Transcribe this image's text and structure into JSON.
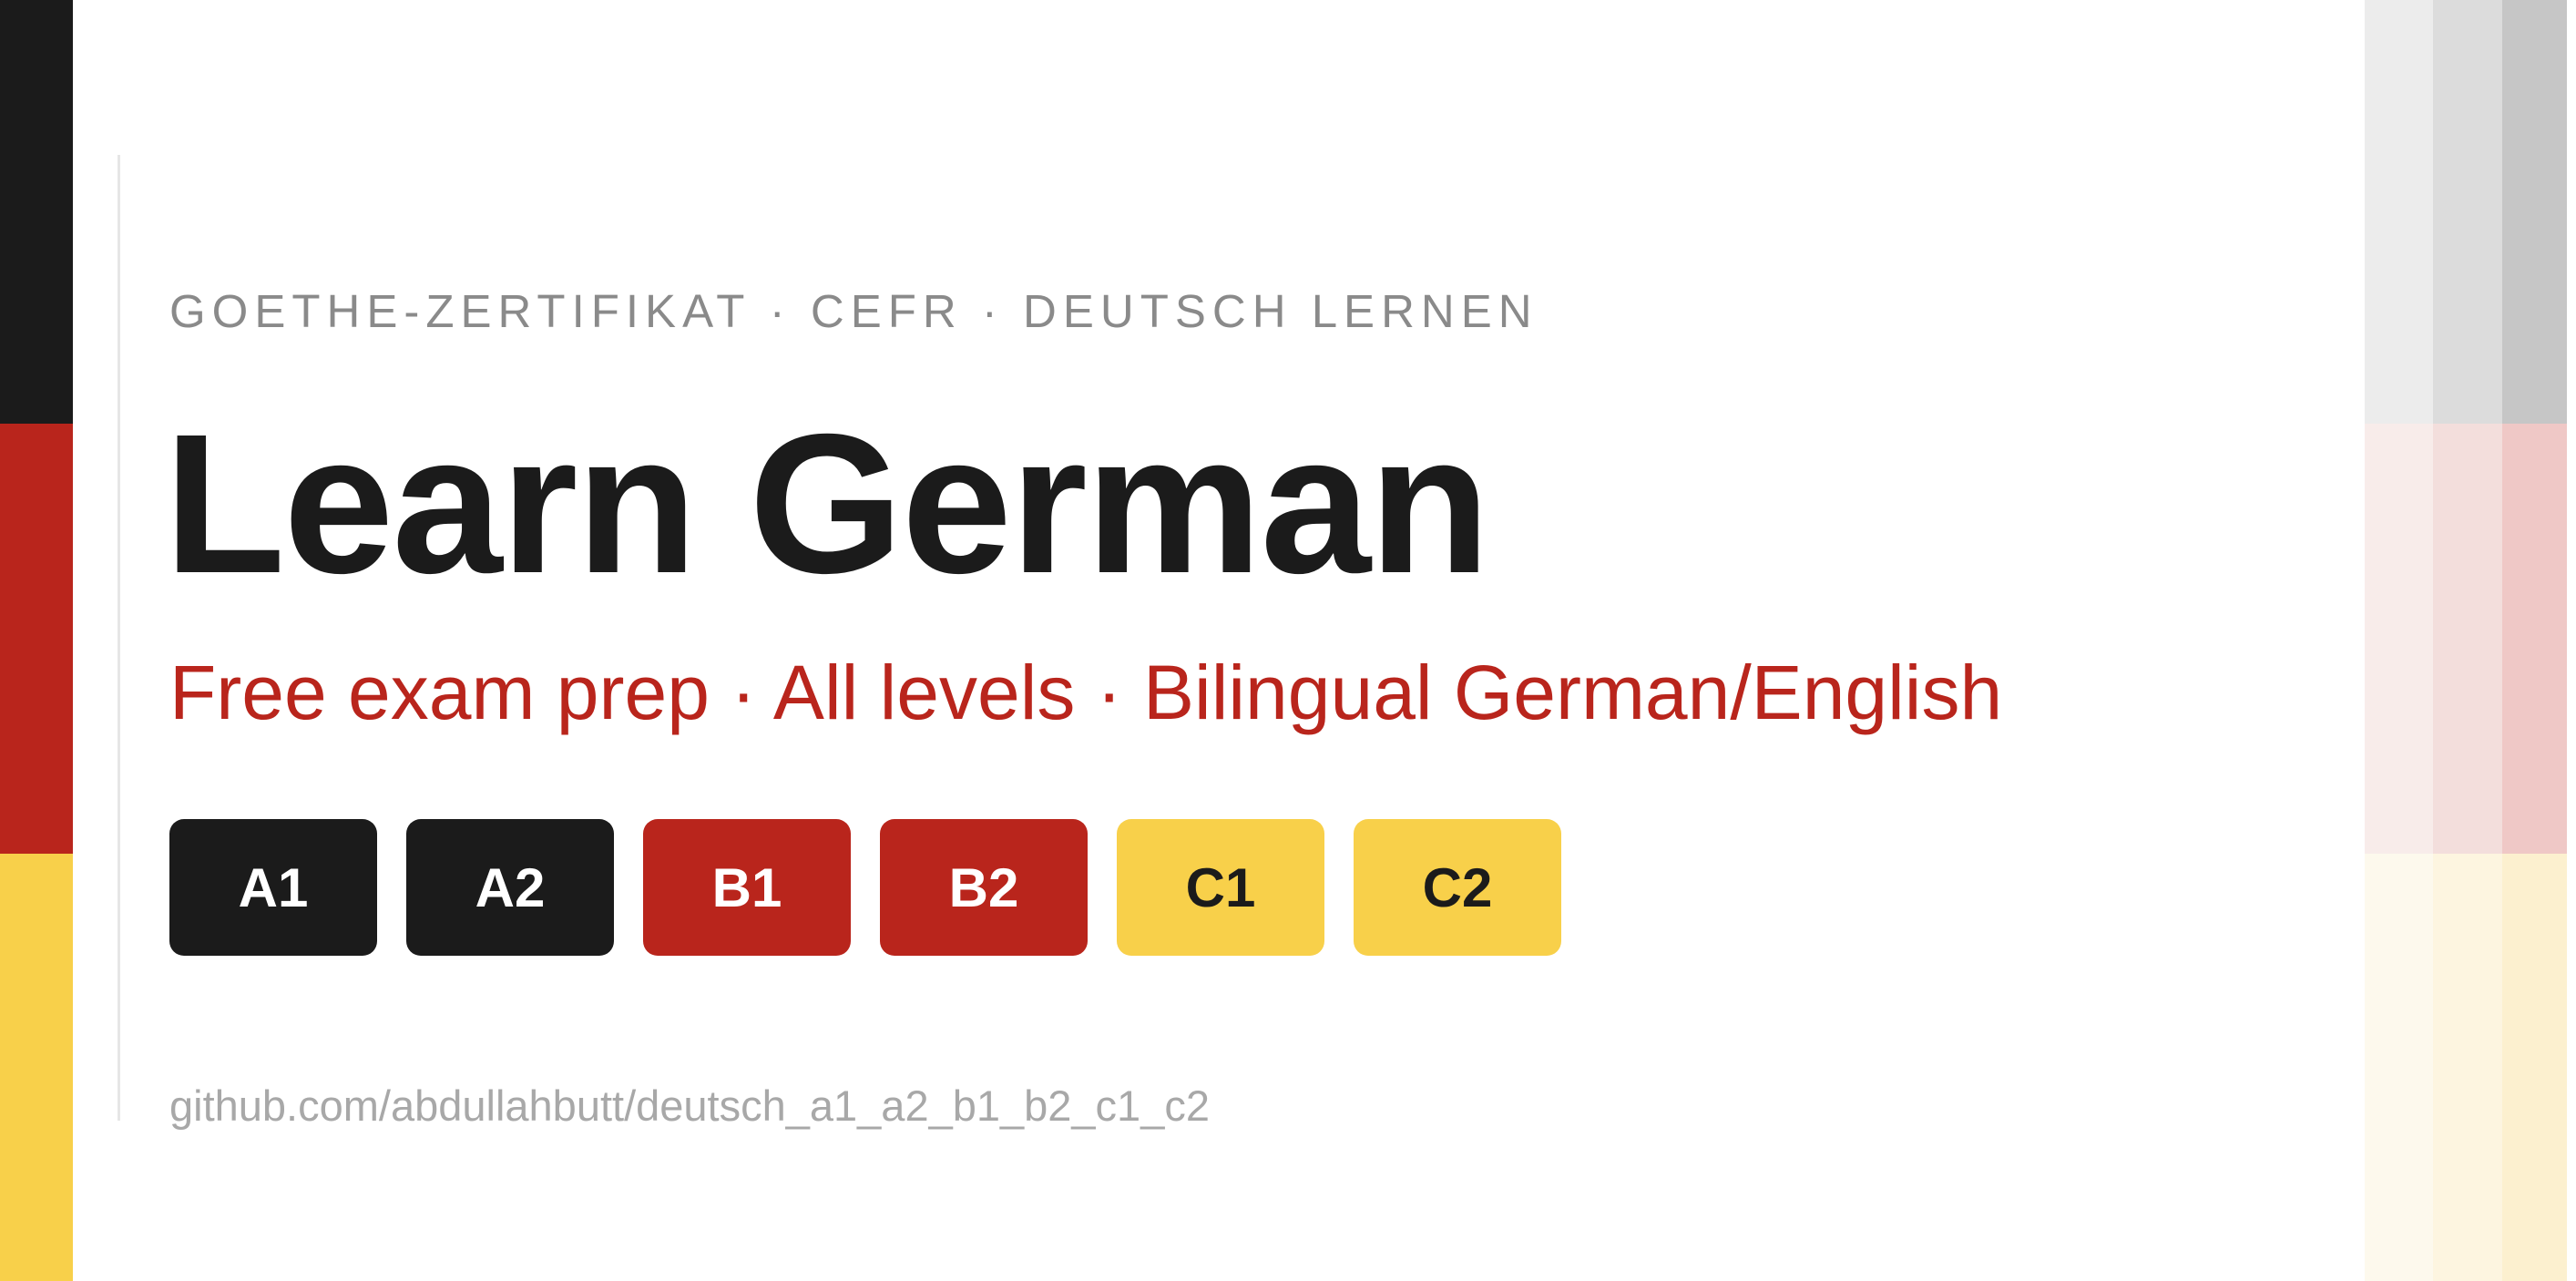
{
  "colors": {
    "black": "#1b1b1b",
    "red": "#b9251c",
    "gold": "#f8d04a",
    "eyebrow": "#8a8a8a",
    "footer": "#a8a8a8"
  },
  "eyebrow": "GOETHE-ZERTIFIKAT · CEFR · DEUTSCH LERNEN",
  "title": "Learn German",
  "tagline": "Free exam prep · All levels · Bilingual German/English",
  "levels": [
    {
      "label": "A1"
    },
    {
      "label": "A2"
    },
    {
      "label": "B1"
    },
    {
      "label": "B2"
    },
    {
      "label": "C1"
    },
    {
      "label": "C2"
    }
  ],
  "footer": "github.com/abdullahbutt/deutsch_a1_a2_b1_b2_c1_c2"
}
